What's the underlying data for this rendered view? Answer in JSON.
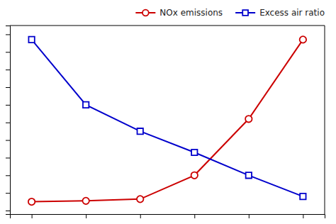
{
  "chart_data": {
    "type": "line",
    "x": [
      1,
      2,
      3,
      4,
      5,
      6
    ],
    "series": [
      {
        "name": "NOx emissions",
        "color": "#cc0000",
        "marker": "circle",
        "values": [
          0.05,
          0.055,
          0.065,
          0.2,
          0.52,
          0.97
        ]
      },
      {
        "name": "Excess air ratio",
        "color": "#0000cc",
        "marker": "square",
        "values": [
          0.97,
          0.6,
          0.45,
          0.33,
          0.2,
          0.08
        ]
      }
    ],
    "xlim": [
      0.6,
      6.4
    ],
    "ylim": [
      -0.02,
      1.05
    ],
    "xticks": [
      1,
      2,
      3,
      4,
      5,
      6
    ],
    "yticks": [
      0,
      0.1,
      0.2,
      0.3,
      0.4,
      0.5,
      0.6,
      0.7,
      0.8,
      0.9,
      1.0
    ],
    "tick_labels": false,
    "grid": false,
    "legend": "upper right"
  }
}
